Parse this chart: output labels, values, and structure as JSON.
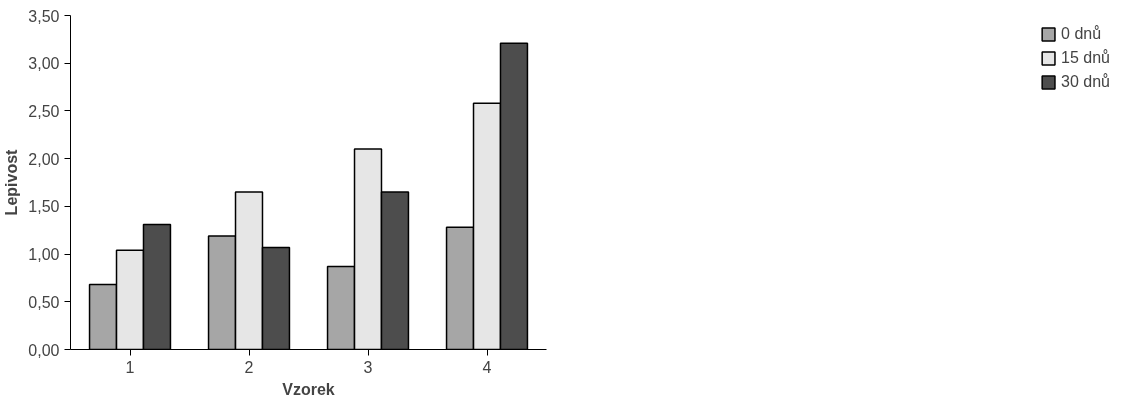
{
  "chart_data": {
    "type": "bar",
    "xlabel": "Vzorek",
    "ylabel": "Lepivost",
    "categories": [
      "1",
      "2",
      "3",
      "4"
    ],
    "series": [
      {
        "name": "0 dnů",
        "color": "#a6a6a6",
        "values": [
          0.68,
          1.19,
          0.87,
          1.28
        ]
      },
      {
        "name": "15 dnů",
        "color": "#e6e6e6",
        "values": [
          1.04,
          1.65,
          2.1,
          2.58
        ]
      },
      {
        "name": "30 dnů",
        "color": "#4d4d4d",
        "values": [
          1.31,
          1.07,
          1.65,
          3.21
        ]
      }
    ],
    "ylim": [
      0,
      3.5
    ],
    "yticks": [
      {
        "value": 0,
        "label": "0,00"
      },
      {
        "value": 0.5,
        "label": "0,50"
      },
      {
        "value": 1,
        "label": "1,00"
      },
      {
        "value": 1.5,
        "label": "1,50"
      },
      {
        "value": 2,
        "label": "2,00"
      },
      {
        "value": 2.5,
        "label": "2,50"
      },
      {
        "value": 3,
        "label": "3,00"
      },
      {
        "value": 3.5,
        "label": "3,50"
      }
    ],
    "grid": false,
    "legend": "right"
  }
}
